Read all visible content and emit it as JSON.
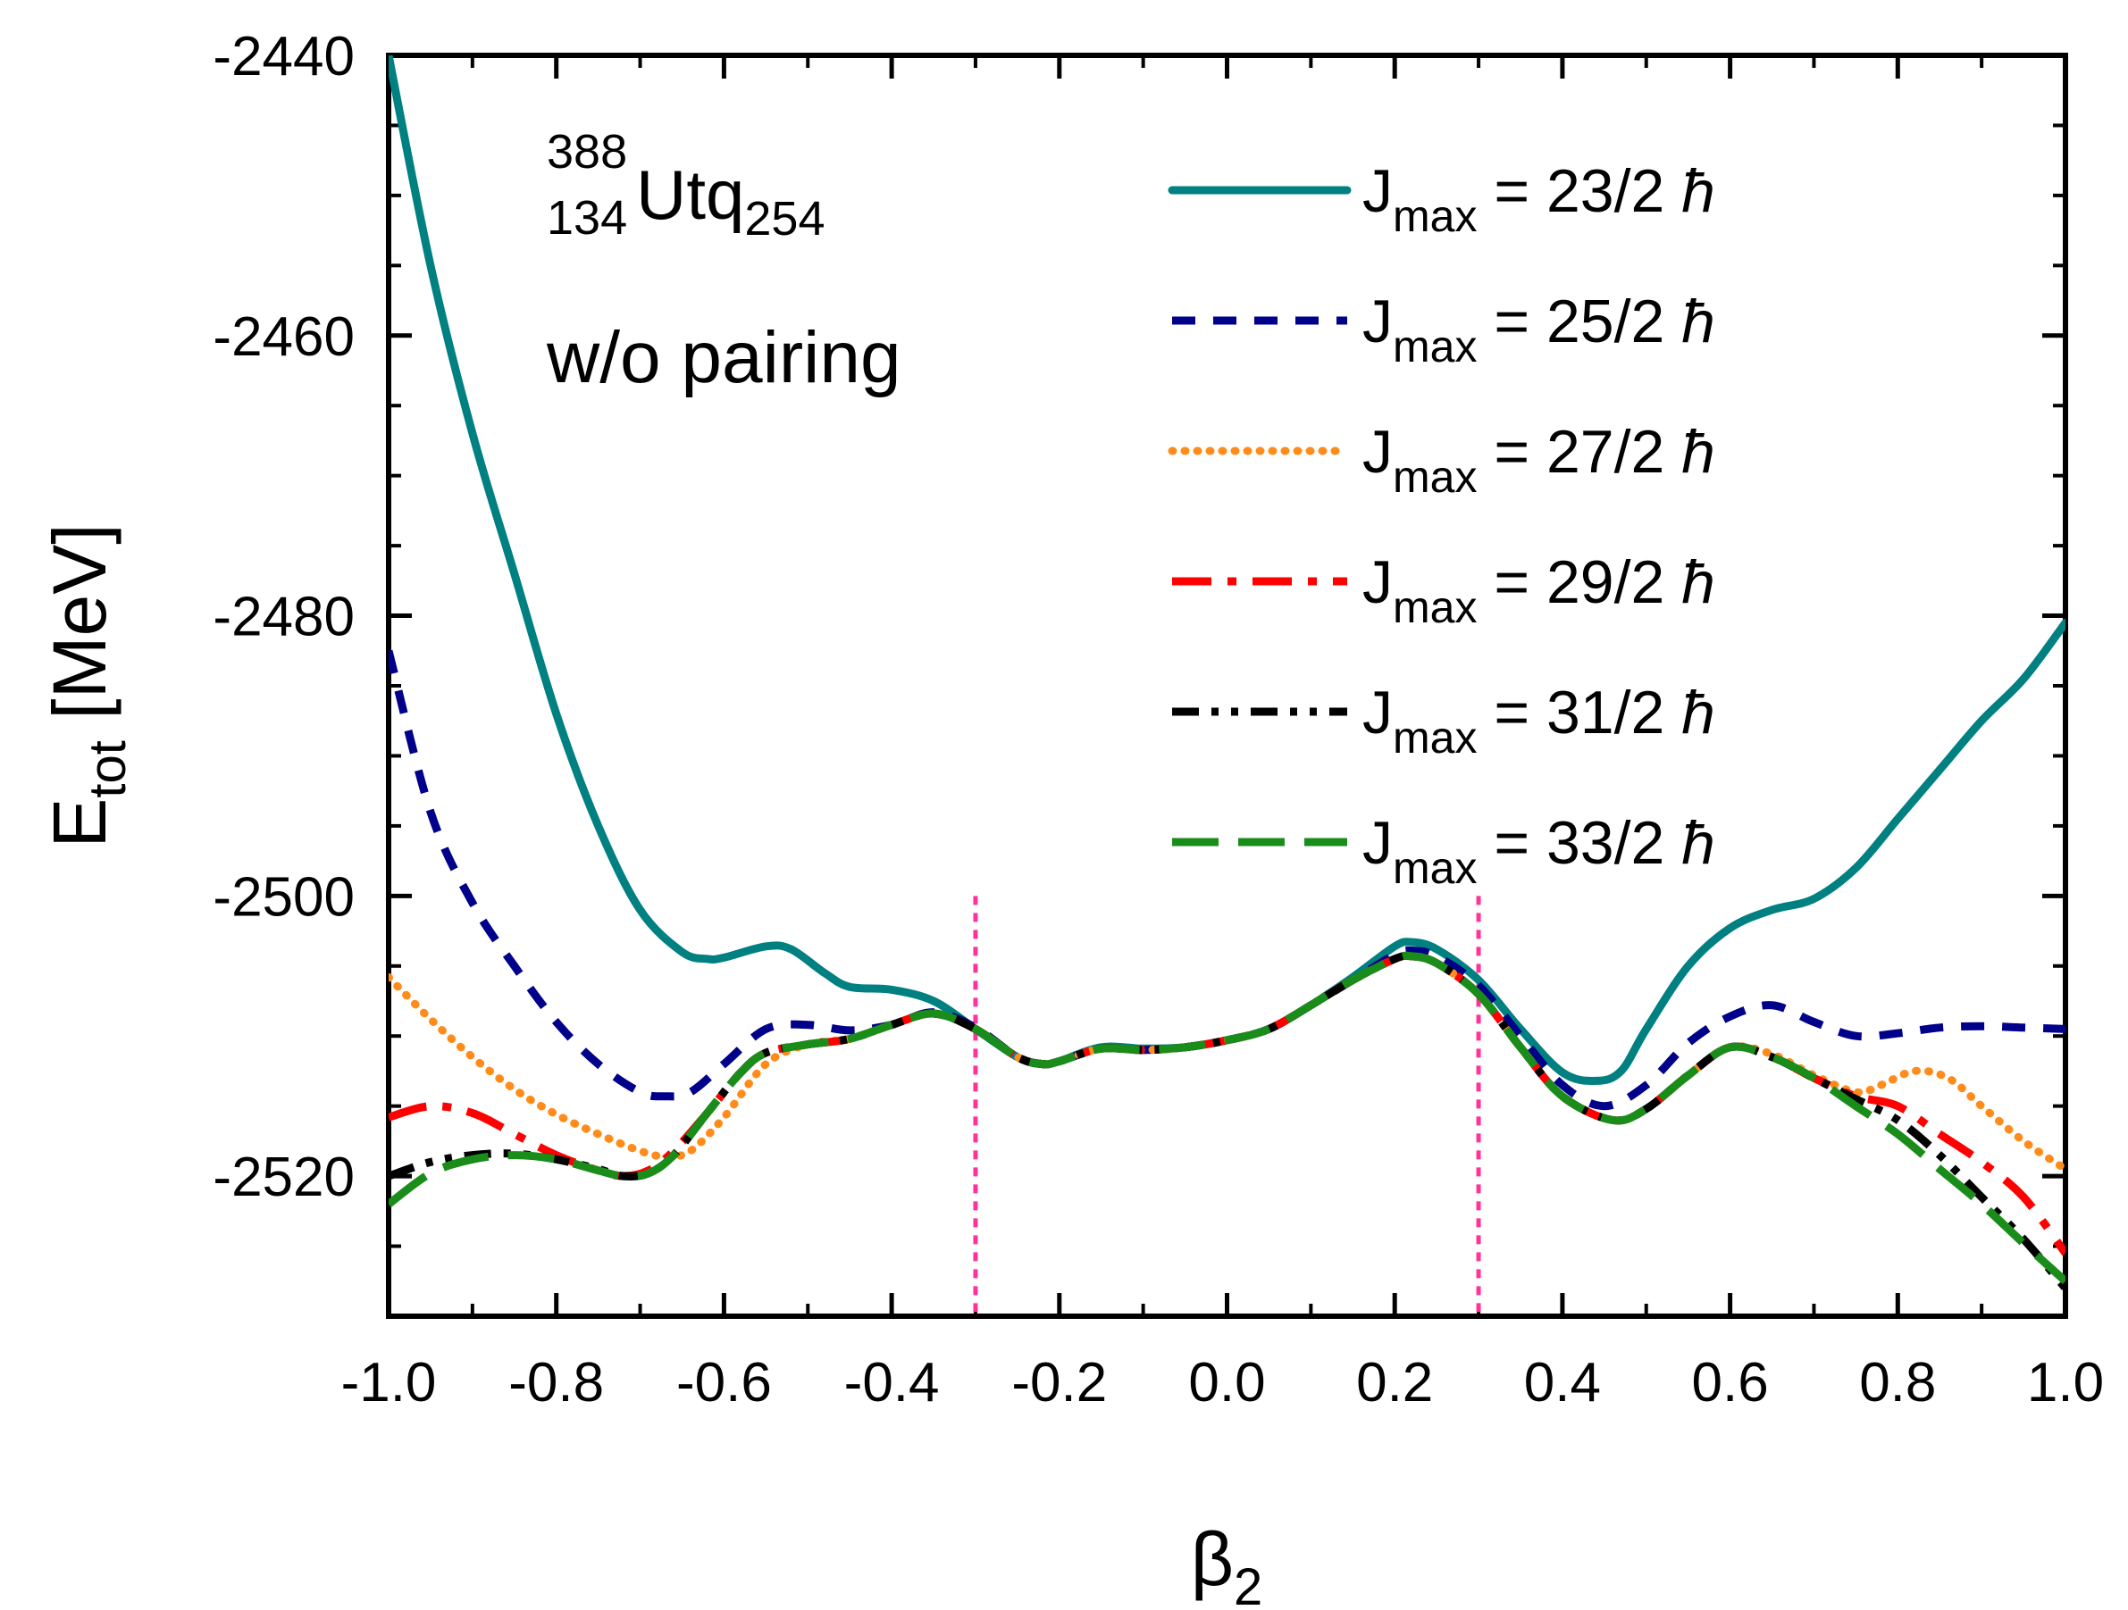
{
  "chart_data": {
    "type": "line",
    "xlabel": {
      "main": "β",
      "sub": "2"
    },
    "ylabel": {
      "main": "E",
      "sub": "tot",
      "rest": " [MeV]"
    },
    "xlim": [
      -1.0,
      1.0
    ],
    "ylim": [
      -2530,
      -2440
    ],
    "x_ticks": [
      -1.0,
      -0.8,
      -0.6,
      -0.4,
      -0.2,
      0.0,
      0.2,
      0.4,
      0.6,
      0.8,
      1.0
    ],
    "x_tick_labels": [
      "-1.0",
      "-0.8",
      "-0.6",
      "-0.4",
      "-0.2",
      "0.0",
      "0.2",
      "0.4",
      "0.6",
      "0.8",
      "1.0"
    ],
    "y_ticks": [
      -2520,
      -2500,
      -2480,
      -2460,
      -2440
    ],
    "y_tick_labels": [
      "-2520",
      "-2500",
      "-2480",
      "-2460",
      "-2440"
    ],
    "nucleus": {
      "mass": "388",
      "charge": "134",
      "symbol": "Utq",
      "neutrons": "254"
    },
    "note": "w/o pairing",
    "vlines": [
      {
        "x": -0.3,
        "color": "#ff3399"
      },
      {
        "x": 0.3,
        "color": "#ff3399"
      }
    ],
    "legend_symbol": "ħ",
    "series": [
      {
        "name": "J_max = 23/2 ħ",
        "label_main": "J",
        "label_sub": "max",
        "label_value": " = 23/2 ",
        "color": "#008080",
        "dash": "solid",
        "x": [
          -1.0,
          -0.95,
          -0.9,
          -0.85,
          -0.8,
          -0.75,
          -0.7,
          -0.65,
          -0.62,
          -0.6,
          -0.55,
          -0.52,
          -0.48,
          -0.45,
          -0.4,
          -0.35,
          -0.3,
          -0.25,
          -0.22,
          -0.2,
          -0.15,
          -0.1,
          -0.05,
          0.0,
          0.05,
          0.1,
          0.15,
          0.2,
          0.22,
          0.25,
          0.3,
          0.35,
          0.4,
          0.44,
          0.47,
          0.5,
          0.55,
          0.6,
          0.65,
          0.7,
          0.75,
          0.8,
          0.85,
          0.9,
          0.95,
          1.0
        ],
        "y": [
          -2440,
          -2455,
          -2467,
          -2477,
          -2487,
          -2495,
          -2501,
          -2504,
          -2504.5,
          -2504.4,
          -2503.6,
          -2503.8,
          -2505.5,
          -2506.5,
          -2506.7,
          -2507.5,
          -2509.5,
          -2511.5,
          -2512,
          -2511.8,
          -2510.8,
          -2510.9,
          -2510.8,
          -2510.3,
          -2509.5,
          -2507.8,
          -2505.8,
          -2503.6,
          -2503.3,
          -2503.8,
          -2506,
          -2509.5,
          -2512.6,
          -2513.2,
          -2512.5,
          -2509.5,
          -2505,
          -2502.3,
          -2501,
          -2500.2,
          -2498,
          -2494.5,
          -2491,
          -2487.5,
          -2484.5,
          -2480.5
        ]
      },
      {
        "name": "J_max = 25/2 ħ",
        "label_main": "J",
        "label_sub": "max",
        "label_value": " = 25/2 ",
        "color": "#00008b",
        "dash": "dashed",
        "x": [
          -1.0,
          -0.95,
          -0.9,
          -0.85,
          -0.8,
          -0.75,
          -0.7,
          -0.67,
          -0.64,
          -0.6,
          -0.55,
          -0.5,
          -0.45,
          -0.4,
          -0.35,
          -0.3,
          -0.25,
          -0.22,
          -0.2,
          -0.15,
          -0.1,
          -0.05,
          0.0,
          0.05,
          0.1,
          0.15,
          0.2,
          0.22,
          0.25,
          0.3,
          0.35,
          0.4,
          0.45,
          0.5,
          0.55,
          0.6,
          0.65,
          0.7,
          0.75,
          0.8,
          0.85,
          0.9,
          0.95,
          1.0
        ],
        "y": [
          -2482.5,
          -2494,
          -2500.5,
          -2505,
          -2509,
          -2512,
          -2514,
          -2514.3,
          -2514,
          -2512,
          -2509.5,
          -2509.2,
          -2509.6,
          -2509.2,
          -2508.3,
          -2509.4,
          -2511.5,
          -2512,
          -2511.8,
          -2510.9,
          -2511,
          -2510.8,
          -2510.3,
          -2509.5,
          -2507.8,
          -2506,
          -2504.2,
          -2503.9,
          -2504.3,
          -2506.4,
          -2510,
          -2513.5,
          -2515,
          -2513.5,
          -2510.5,
          -2508.6,
          -2507.8,
          -2509,
          -2510,
          -2509.8,
          -2509.4,
          -2509.3,
          -2509.4,
          -2509.5
        ]
      },
      {
        "name": "J_max = 27/2 ħ",
        "label_main": "J",
        "label_sub": "max",
        "label_value": " = 27/2 ",
        "color": "#ff8c1a",
        "dash": "dotted",
        "x": [
          -1.0,
          -0.95,
          -0.9,
          -0.85,
          -0.8,
          -0.75,
          -0.7,
          -0.67,
          -0.64,
          -0.6,
          -0.55,
          -0.5,
          -0.45,
          -0.4,
          -0.35,
          -0.3,
          -0.25,
          -0.22,
          -0.2,
          -0.15,
          -0.1,
          -0.05,
          0.0,
          0.05,
          0.1,
          0.15,
          0.2,
          0.22,
          0.25,
          0.3,
          0.35,
          0.4,
          0.46,
          0.5,
          0.55,
          0.6,
          0.65,
          0.7,
          0.75,
          0.78,
          0.82,
          0.86,
          0.9,
          0.95,
          1.0
        ],
        "y": [
          -2505.8,
          -2508.8,
          -2511.5,
          -2513.8,
          -2515.6,
          -2517,
          -2518.2,
          -2518.6,
          -2518.2,
          -2515.8,
          -2512,
          -2510.6,
          -2510.2,
          -2509.2,
          -2508.4,
          -2509.5,
          -2511.5,
          -2512,
          -2511.8,
          -2510.9,
          -2511,
          -2510.8,
          -2510.3,
          -2509.5,
          -2507.8,
          -2506,
          -2504.5,
          -2504.3,
          -2504.8,
          -2507,
          -2510.8,
          -2514.3,
          -2516,
          -2515.2,
          -2512.8,
          -2510.8,
          -2511.3,
          -2512.8,
          -2514,
          -2513.5,
          -2512.5,
          -2513,
          -2515,
          -2517.5,
          -2519.5
        ]
      },
      {
        "name": "J_max = 29/2 ħ",
        "label_main": "J",
        "label_sub": "max",
        "label_value": " = 29/2 ",
        "color": "#ff0000",
        "dash": "dashdot",
        "x": [
          -1.0,
          -0.95,
          -0.9,
          -0.85,
          -0.8,
          -0.75,
          -0.72,
          -0.69,
          -0.66,
          -0.62,
          -0.58,
          -0.55,
          -0.5,
          -0.45,
          -0.4,
          -0.35,
          -0.3,
          -0.25,
          -0.22,
          -0.2,
          -0.15,
          -0.1,
          -0.05,
          0.0,
          0.05,
          0.1,
          0.15,
          0.2,
          0.22,
          0.25,
          0.3,
          0.35,
          0.4,
          0.46,
          0.5,
          0.55,
          0.6,
          0.65,
          0.7,
          0.75,
          0.8,
          0.85,
          0.9,
          0.95,
          1.0
        ],
        "y": [
          -2515.8,
          -2515,
          -2515.5,
          -2517,
          -2518.5,
          -2519.6,
          -2520,
          -2519.6,
          -2518.2,
          -2515.5,
          -2512.6,
          -2511.2,
          -2510.6,
          -2510.2,
          -2509.2,
          -2508.4,
          -2509.5,
          -2511.5,
          -2512,
          -2511.8,
          -2510.9,
          -2511,
          -2510.8,
          -2510.3,
          -2509.5,
          -2507.8,
          -2506,
          -2504.5,
          -2504.3,
          -2504.8,
          -2507,
          -2510.8,
          -2514.3,
          -2516,
          -2515.2,
          -2512.8,
          -2510.8,
          -2511.5,
          -2513,
          -2514.3,
          -2515,
          -2517,
          -2519,
          -2521.5,
          -2525.5
        ]
      },
      {
        "name": "J_max = 31/2 ħ",
        "label_main": "J",
        "label_sub": "max",
        "label_value": " = 31/2 ",
        "color": "#000000",
        "dash": "dashdotdot",
        "x": [
          -1.0,
          -0.95,
          -0.9,
          -0.85,
          -0.8,
          -0.75,
          -0.72,
          -0.69,
          -0.66,
          -0.62,
          -0.58,
          -0.55,
          -0.5,
          -0.45,
          -0.4,
          -0.35,
          -0.3,
          -0.25,
          -0.22,
          -0.2,
          -0.15,
          -0.1,
          -0.05,
          0.0,
          0.05,
          0.1,
          0.15,
          0.2,
          0.22,
          0.25,
          0.3,
          0.35,
          0.4,
          0.46,
          0.5,
          0.55,
          0.6,
          0.65,
          0.7,
          0.75,
          0.8,
          0.85,
          0.9,
          0.95,
          1.0
        ],
        "y": [
          -2520,
          -2519,
          -2518.5,
          -2518.4,
          -2518.8,
          -2519.5,
          -2520,
          -2519.8,
          -2518.5,
          -2515.5,
          -2512.6,
          -2511.2,
          -2510.6,
          -2510.2,
          -2509.2,
          -2508.4,
          -2509.5,
          -2511.5,
          -2512,
          -2511.8,
          -2510.9,
          -2511,
          -2510.8,
          -2510.3,
          -2509.5,
          -2507.8,
          -2506,
          -2504.5,
          -2504.3,
          -2504.8,
          -2507,
          -2510.8,
          -2514.3,
          -2516,
          -2515.2,
          -2512.8,
          -2510.8,
          -2511.5,
          -2513,
          -2514.5,
          -2516,
          -2518.5,
          -2521.5,
          -2524.5,
          -2528
        ]
      },
      {
        "name": "J_max = 33/2 ħ",
        "label_main": "J",
        "label_sub": "max",
        "label_value": " = 33/2 ",
        "color": "#1a8c1a",
        "dash": "longdash",
        "x": [
          -1.0,
          -0.95,
          -0.9,
          -0.85,
          -0.8,
          -0.75,
          -0.72,
          -0.69,
          -0.66,
          -0.62,
          -0.58,
          -0.55,
          -0.5,
          -0.45,
          -0.4,
          -0.35,
          -0.3,
          -0.25,
          -0.22,
          -0.2,
          -0.15,
          -0.1,
          -0.05,
          0.0,
          0.05,
          0.1,
          0.15,
          0.2,
          0.22,
          0.25,
          0.3,
          0.35,
          0.4,
          0.46,
          0.5,
          0.55,
          0.6,
          0.65,
          0.7,
          0.75,
          0.8,
          0.85,
          0.9,
          0.95,
          1.0
        ],
        "y": [
          -2522,
          -2519.8,
          -2518.8,
          -2518.5,
          -2518.8,
          -2519.6,
          -2520,
          -2519.8,
          -2518.5,
          -2515.5,
          -2512.6,
          -2511.2,
          -2510.6,
          -2510.2,
          -2509.2,
          -2508.4,
          -2509.5,
          -2511.5,
          -2512,
          -2511.8,
          -2510.9,
          -2511,
          -2510.8,
          -2510.3,
          -2509.5,
          -2507.8,
          -2506,
          -2504.5,
          -2504.3,
          -2504.8,
          -2507,
          -2510.8,
          -2514.3,
          -2516,
          -2515.2,
          -2512.8,
          -2510.8,
          -2511.5,
          -2513,
          -2515,
          -2517,
          -2519.5,
          -2522,
          -2524.8,
          -2527.5
        ]
      }
    ]
  }
}
